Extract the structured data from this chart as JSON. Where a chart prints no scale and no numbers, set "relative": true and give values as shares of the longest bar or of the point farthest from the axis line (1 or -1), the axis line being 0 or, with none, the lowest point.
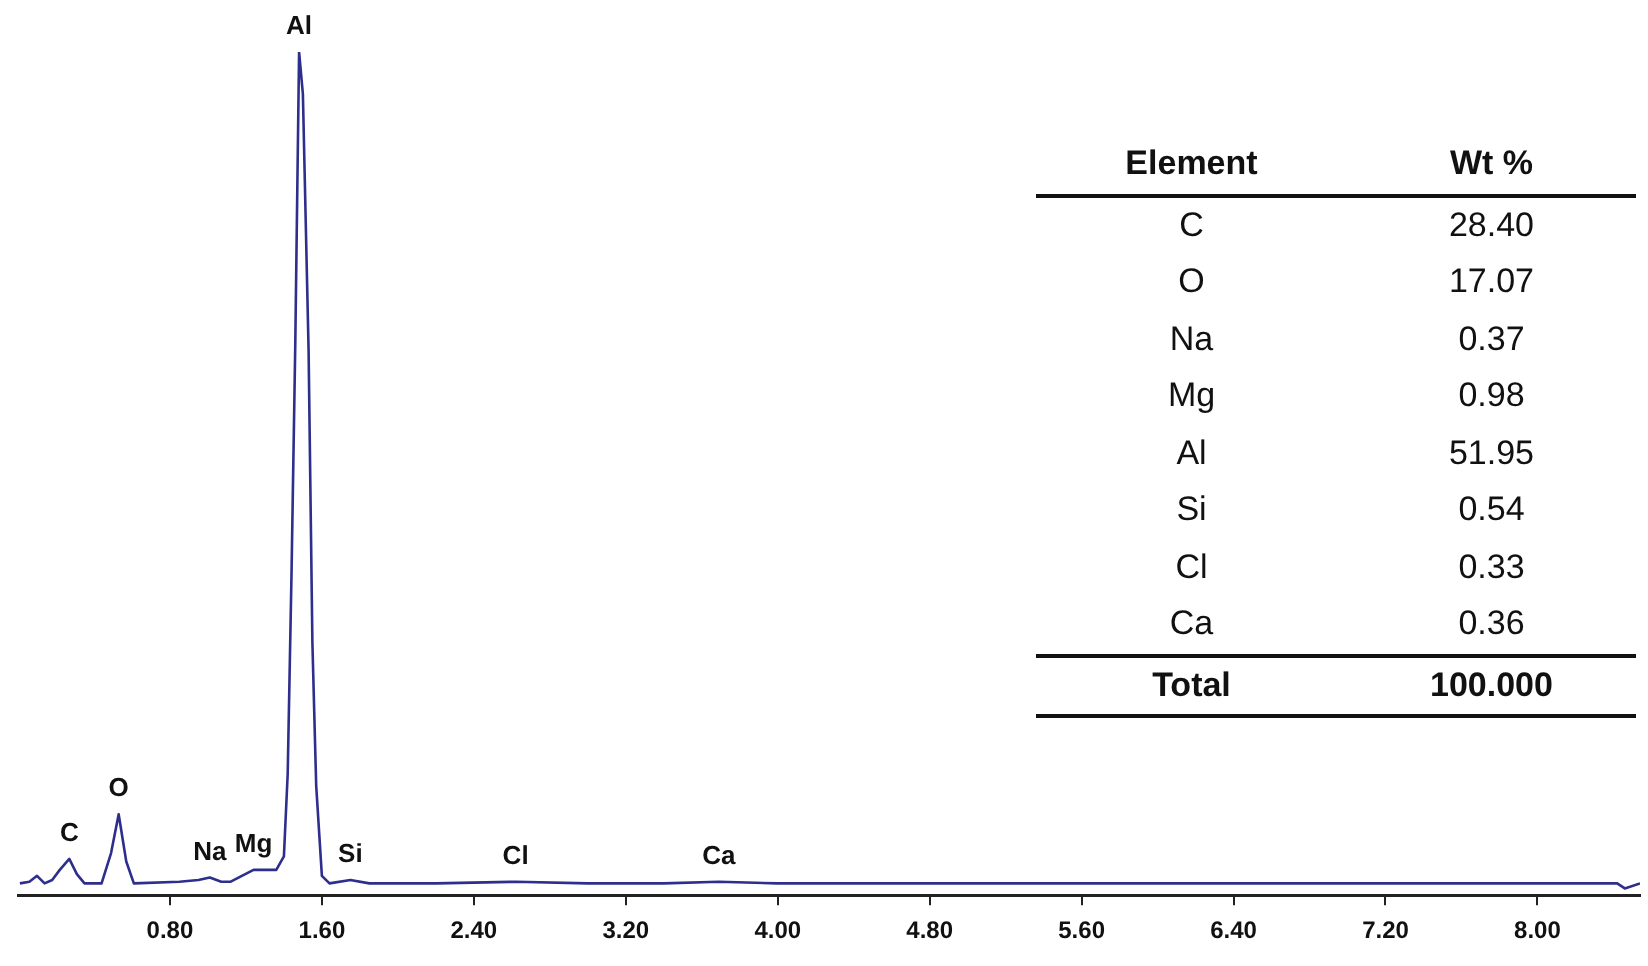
{
  "chart_data": [
    {
      "type": "line",
      "relative": true,
      "xlim": [
        0,
        8.54
      ],
      "xticks": [
        {
          "value": 0.8,
          "label": "0.80"
        },
        {
          "value": 1.6,
          "label": "1.60"
        },
        {
          "value": 2.4,
          "label": "2.40"
        },
        {
          "value": 3.2,
          "label": "3.20"
        },
        {
          "value": 4.0,
          "label": "4.00"
        },
        {
          "value": 4.8,
          "label": "4.80"
        },
        {
          "value": 5.6,
          "label": "5.60"
        },
        {
          "value": 6.4,
          "label": "6.40"
        },
        {
          "value": 7.2,
          "label": "7.20"
        },
        {
          "value": 8.0,
          "label": "8.00"
        }
      ],
      "grid": false,
      "legend": false,
      "marker": "none",
      "line_style": "solid",
      "series": [
        {
          "color": "#2e2e8c",
          "x": [
            0.01,
            0.06,
            0.1,
            0.14,
            0.18,
            0.22,
            0.27,
            0.31,
            0.35,
            0.44,
            0.49,
            0.53,
            0.57,
            0.61,
            0.85,
            0.95,
            1.01,
            1.07,
            1.12,
            1.24,
            1.36,
            1.4,
            1.42,
            1.44,
            1.46,
            1.48,
            1.5,
            1.53,
            1.55,
            1.57,
            1.6,
            1.64,
            1.75,
            1.85,
            2.2,
            2.62,
            3.0,
            3.4,
            3.69,
            4.0,
            4.5,
            5.0,
            6.0,
            7.0,
            8.0,
            8.42,
            8.46,
            8.54
          ],
          "values": [
            0.014,
            0.016,
            0.023,
            0.014,
            0.018,
            0.03,
            0.043,
            0.025,
            0.014,
            0.014,
            0.05,
            0.096,
            0.04,
            0.014,
            0.016,
            0.018,
            0.021,
            0.016,
            0.016,
            0.03,
            0.03,
            0.046,
            0.144,
            0.38,
            0.655,
            1.0,
            0.95,
            0.646,
            0.3,
            0.13,
            0.023,
            0.014,
            0.018,
            0.014,
            0.014,
            0.016,
            0.014,
            0.014,
            0.016,
            0.014,
            0.014,
            0.014,
            0.014,
            0.014,
            0.014,
            0.014,
            0.008,
            0.014
          ]
        }
      ],
      "annotations": [
        {
          "text": "C",
          "x": 0.27,
          "y": 0.043
        },
        {
          "text": "O",
          "x": 0.53,
          "y": 0.096
        },
        {
          "text": "Na",
          "x": 1.01,
          "y": 0.021
        },
        {
          "text": "Mg",
          "x": 1.24,
          "y": 0.03
        },
        {
          "text": "Al",
          "x": 1.48,
          "y": 1.0
        },
        {
          "text": "Si",
          "x": 1.75,
          "y": 0.018
        },
        {
          "text": "Cl",
          "x": 2.62,
          "y": 0.016
        },
        {
          "text": "Ca",
          "x": 3.69,
          "y": 0.016
        }
      ]
    },
    {
      "type": "other",
      "categories": [
        "C",
        "O",
        "Na",
        "Mg",
        "Al",
        "Si",
        "Cl",
        "Ca"
      ],
      "value_labels": [
        "28.40",
        "17.07",
        "0.37",
        "0.98",
        "51.95",
        "0.54",
        "0.33",
        "0.36"
      ],
      "xlabel": "Element",
      "ylabel": "Wt %",
      "annotations": [
        "Total",
        "100.000"
      ]
    }
  ]
}
